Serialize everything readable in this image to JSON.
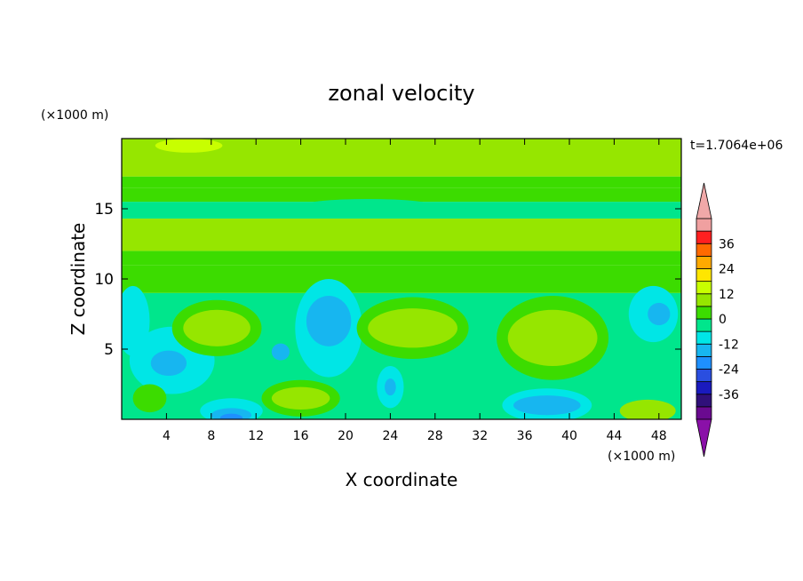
{
  "chart_data": {
    "type": "heatmap",
    "title": "zonal velocity",
    "xlabel": "X coordinate",
    "ylabel": "Z coordinate",
    "x_units": "(×1000 m)",
    "y_units": "(×1000 m)",
    "time_label": "t=1.7064e+06",
    "xlim": [
      0,
      50
    ],
    "ylim": [
      0,
      20
    ],
    "x_ticks": [
      4,
      8,
      12,
      16,
      20,
      24,
      28,
      32,
      36,
      40,
      44,
      48
    ],
    "y_ticks": [
      5,
      10,
      15
    ],
    "colorbar": {
      "levels": [
        -42,
        -36,
        -30,
        -24,
        -18,
        -12,
        -6,
        0,
        6,
        12,
        18,
        24,
        30,
        36,
        42
      ],
      "tick_values": [
        -36,
        -24,
        -12,
        0,
        12,
        24,
        36
      ],
      "colors": [
        "#6a0a90",
        "#30107a",
        "#1a1abe",
        "#2a4ee0",
        "#1e90ff",
        "#17b6f0",
        "#00e6e6",
        "#00e68c",
        "#3cdc00",
        "#96e600",
        "#c8ff00",
        "#ffe600",
        "#ffaa00",
        "#ff6a00",
        "#ff2020",
        "#f0a0a0"
      ],
      "under_color": "#8a10a8",
      "over_color": "#f0a8a8",
      "extend": "both"
    },
    "bands": [
      {
        "z": [
          0,
          9
        ],
        "value": -4
      },
      {
        "z": [
          9,
          11
        ],
        "value": 2
      },
      {
        "z": [
          11,
          12
        ],
        "value": 4
      },
      {
        "z": [
          12,
          14.3
        ],
        "value": 8
      },
      {
        "z": [
          14.3,
          15.5
        ],
        "value": -2
      },
      {
        "z": [
          15.5,
          16.5
        ],
        "value": 1
      },
      {
        "z": [
          16.5,
          17.3
        ],
        "value": 4
      },
      {
        "z": [
          17.3,
          20
        ],
        "value": 9
      }
    ],
    "features": [
      {
        "x": 4.5,
        "z": 4.2,
        "rx": 3.8,
        "rz": 2.4,
        "value": -9
      },
      {
        "x": 4.2,
        "z": 4.0,
        "rx": 1.6,
        "rz": 0.9,
        "value": -14
      },
      {
        "x": 1,
        "z": 7,
        "rx": 1.5,
        "rz": 2.5,
        "value": -9
      },
      {
        "x": 8.5,
        "z": 6.5,
        "rx": 4.0,
        "rz": 2.0,
        "value": 2
      },
      {
        "x": 8.5,
        "z": 6.5,
        "rx": 3.0,
        "rz": 1.3,
        "value": 7
      },
      {
        "x": 18.5,
        "z": 6.5,
        "rx": 3.0,
        "rz": 3.5,
        "value": -9
      },
      {
        "x": 18.5,
        "z": 7,
        "rx": 2.0,
        "rz": 1.8,
        "value": -13
      },
      {
        "x": 14.2,
        "z": 4.8,
        "rx": 0.8,
        "rz": 0.6,
        "value": -16
      },
      {
        "x": 26,
        "z": 6.5,
        "rx": 5.0,
        "rz": 2.2,
        "value": 2
      },
      {
        "x": 26,
        "z": 6.5,
        "rx": 4.0,
        "rz": 1.4,
        "value": 8
      },
      {
        "x": 38.5,
        "z": 5.8,
        "rx": 5.0,
        "rz": 3.0,
        "value": 2
      },
      {
        "x": 38.5,
        "z": 5.8,
        "rx": 4.0,
        "rz": 2.0,
        "value": 7
      },
      {
        "x": 16,
        "z": 1.5,
        "rx": 3.5,
        "rz": 1.3,
        "value": 2
      },
      {
        "x": 16,
        "z": 1.5,
        "rx": 2.6,
        "rz": 0.8,
        "value": 7
      },
      {
        "x": 24,
        "z": 2.3,
        "rx": 1.2,
        "rz": 1.5,
        "value": -9
      },
      {
        "x": 24,
        "z": 2.3,
        "rx": 0.5,
        "rz": 0.6,
        "value": -15
      },
      {
        "x": 9.8,
        "z": 0.6,
        "rx": 2.8,
        "rz": 0.9,
        "value": -10
      },
      {
        "x": 9.8,
        "z": 0.3,
        "rx": 1.8,
        "rz": 0.5,
        "value": -16
      },
      {
        "x": 9.8,
        "z": 0.1,
        "rx": 1.0,
        "rz": 0.3,
        "value": -22
      },
      {
        "x": 38,
        "z": 1.0,
        "rx": 4.0,
        "rz": 1.2,
        "value": -9
      },
      {
        "x": 38,
        "z": 1.0,
        "rx": 3.0,
        "rz": 0.7,
        "value": -15
      },
      {
        "x": 47,
        "z": 0.6,
        "rx": 2.5,
        "rz": 0.8,
        "value": 7
      },
      {
        "x": 47.5,
        "z": 7.5,
        "rx": 2.2,
        "rz": 2.0,
        "value": -10
      },
      {
        "x": 48,
        "z": 7.5,
        "rx": 1.0,
        "rz": 0.8,
        "value": -15
      },
      {
        "x": 6,
        "z": 19.5,
        "rx": 3.0,
        "rz": 0.5,
        "value": 12
      },
      {
        "x": 2.5,
        "z": 1.5,
        "rx": 1.5,
        "rz": 1.0,
        "value": 2
      },
      {
        "x": 31,
        "z": 3,
        "rx": 2.0,
        "rz": 2.0,
        "value": -4
      },
      {
        "x": 22,
        "z": 15.2,
        "rx": 6.0,
        "rz": 0.5,
        "value": -6
      },
      {
        "x": 36,
        "z": 14.8,
        "rx": 6.0,
        "rz": 0.5,
        "value": -6
      }
    ]
  }
}
